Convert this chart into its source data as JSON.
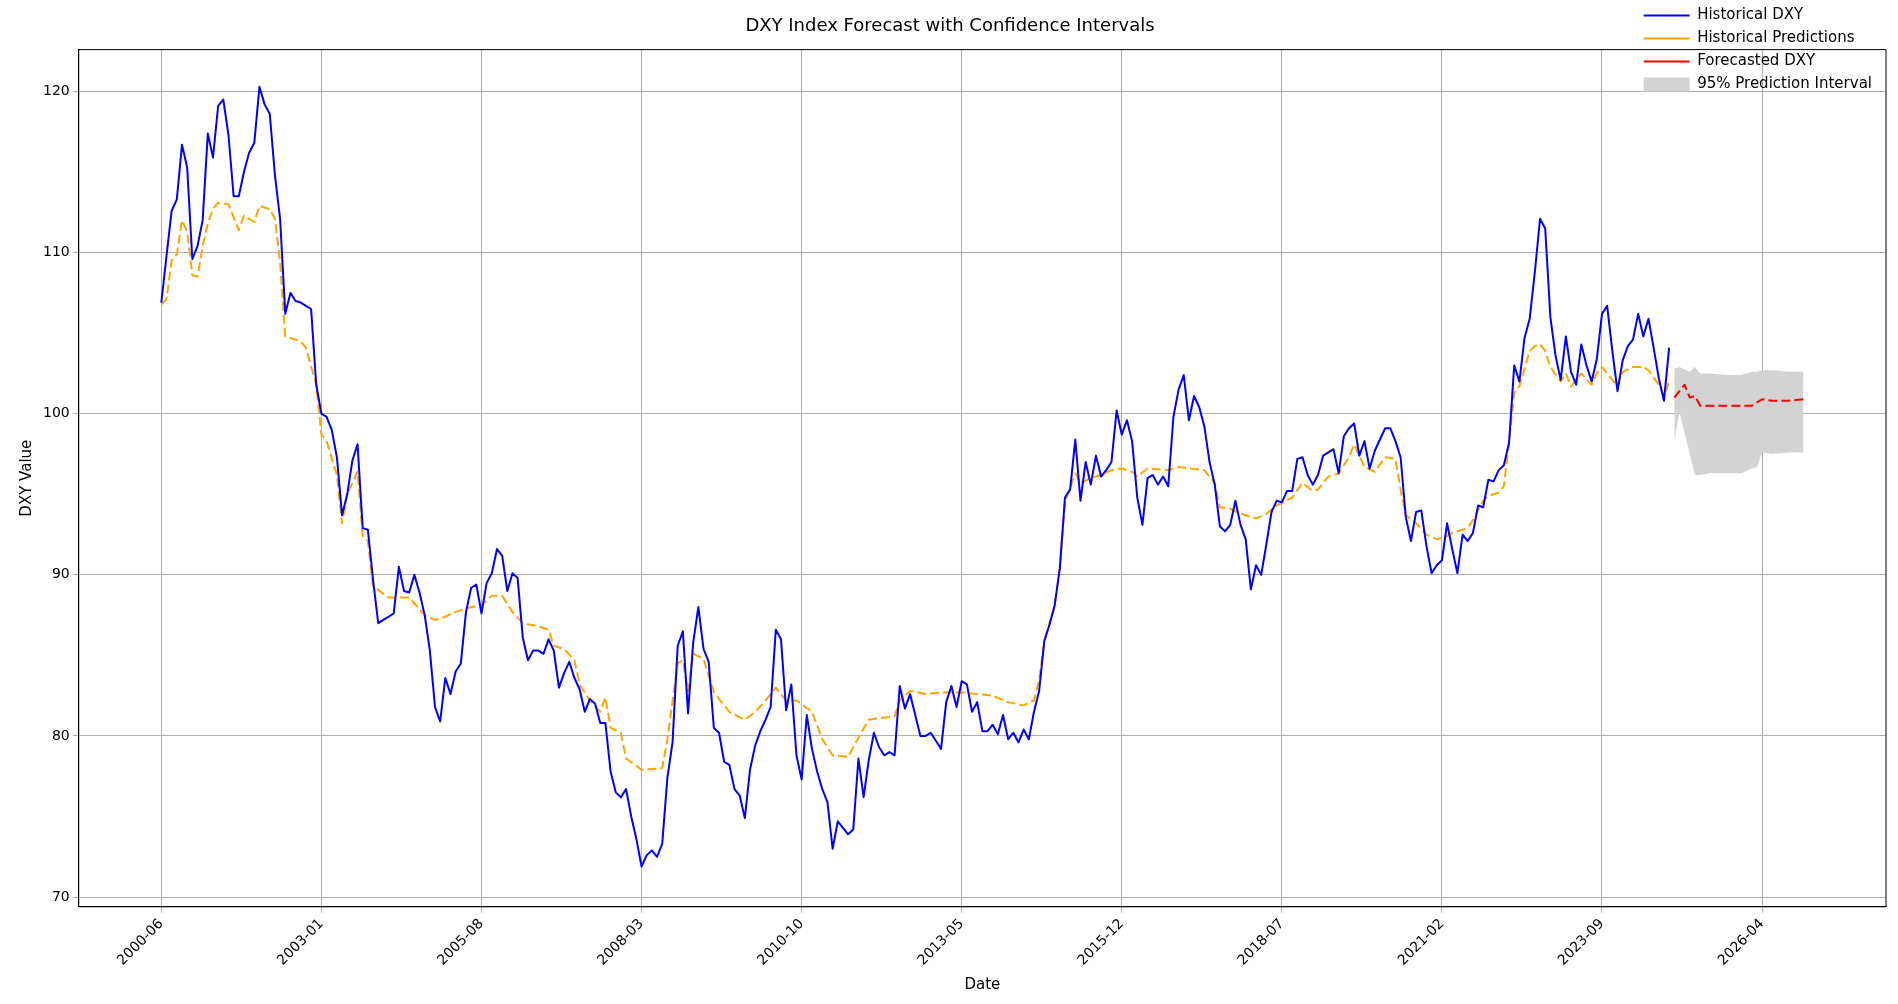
{
  "chart_data": {
    "type": "line",
    "title": "DXY Index Forecast with Confidence Intervals",
    "xlabel": "Date",
    "ylabel": "DXY Value",
    "xlim": [
      "1999-02",
      "2028-04"
    ],
    "xticks": [
      "2000-06",
      "2003-01",
      "2005-08",
      "2008-03",
      "2010-10",
      "2013-05",
      "2015-12",
      "2018-07",
      "2021-02",
      "2023-09",
      "2026-04"
    ],
    "ylim": [
      69.4,
      122.6
    ],
    "yticks": [
      70,
      80,
      90,
      100,
      110,
      120
    ],
    "grid": true,
    "legend": "top right",
    "series": [
      {
        "name": "Historical DXY",
        "type": "line",
        "color": "#0000ff",
        "line_style": "solid",
        "x": [
          "2000-06",
          "2000-07",
          "2000-08",
          "2000-09",
          "2000-10",
          "2000-11",
          "2000-12",
          "2001-01",
          "2001-02",
          "2001-03",
          "2001-04",
          "2001-05",
          "2001-06",
          "2001-07",
          "2001-08",
          "2001-09",
          "2001-10",
          "2001-11",
          "2001-12",
          "2002-01",
          "2002-02",
          "2002-03",
          "2002-04",
          "2002-05",
          "2002-06",
          "2002-07",
          "2002-08",
          "2002-09",
          "2002-10",
          "2002-11",
          "2002-12",
          "2003-01",
          "2003-02",
          "2003-03",
          "2003-04",
          "2003-05",
          "2003-06",
          "2003-07",
          "2003-08",
          "2003-09",
          "2003-10",
          "2003-11",
          "2003-12",
          "2004-01",
          "2004-02",
          "2004-03",
          "2004-04",
          "2004-05",
          "2004-06",
          "2004-07",
          "2004-08",
          "2004-09",
          "2004-10",
          "2004-11",
          "2004-12",
          "2005-01",
          "2005-02",
          "2005-03",
          "2005-04",
          "2005-05",
          "2005-06",
          "2005-07",
          "2005-08",
          "2005-09",
          "2005-10",
          "2005-11",
          "2005-12",
          "2006-01",
          "2006-02",
          "2006-03",
          "2006-04",
          "2006-05",
          "2006-06",
          "2006-07",
          "2006-08",
          "2006-09",
          "2006-10",
          "2006-11",
          "2006-12",
          "2007-01",
          "2007-02",
          "2007-03",
          "2007-04",
          "2007-05",
          "2007-06",
          "2007-07",
          "2007-08",
          "2007-09",
          "2007-10",
          "2007-11",
          "2007-12",
          "2008-01",
          "2008-02",
          "2008-03",
          "2008-04",
          "2008-05",
          "2008-06",
          "2008-07",
          "2008-08",
          "2008-09",
          "2008-10",
          "2008-11",
          "2008-12",
          "2009-01",
          "2009-02",
          "2009-03",
          "2009-04",
          "2009-05",
          "2009-06",
          "2009-07",
          "2009-08",
          "2009-09",
          "2009-10",
          "2009-11",
          "2009-12",
          "2010-01",
          "2010-02",
          "2010-03",
          "2010-04",
          "2010-05",
          "2010-06",
          "2010-07",
          "2010-08",
          "2010-09",
          "2010-10",
          "2010-11",
          "2010-12",
          "2011-01",
          "2011-02",
          "2011-03",
          "2011-04",
          "2011-05",
          "2011-06",
          "2011-07",
          "2011-08",
          "2011-09",
          "2011-10",
          "2011-11",
          "2011-12",
          "2012-01",
          "2012-02",
          "2012-03",
          "2012-04",
          "2012-05",
          "2012-06",
          "2012-07",
          "2012-08",
          "2012-09",
          "2012-10",
          "2012-11",
          "2012-12",
          "2013-01",
          "2013-02",
          "2013-03",
          "2013-04",
          "2013-05",
          "2013-06",
          "2013-07",
          "2013-08",
          "2013-09",
          "2013-10",
          "2013-11",
          "2013-12",
          "2014-01",
          "2014-02",
          "2014-03",
          "2014-04",
          "2014-05",
          "2014-06",
          "2014-07",
          "2014-08",
          "2014-09",
          "2014-10",
          "2014-11",
          "2014-12",
          "2015-01",
          "2015-02",
          "2015-03",
          "2015-04",
          "2015-05",
          "2015-06",
          "2015-07",
          "2015-08",
          "2015-09",
          "2015-10",
          "2015-11",
          "2015-12",
          "2016-01",
          "2016-02",
          "2016-03",
          "2016-04",
          "2016-05",
          "2016-06",
          "2016-07",
          "2016-08",
          "2016-09",
          "2016-10",
          "2016-11",
          "2016-12",
          "2017-01",
          "2017-02",
          "2017-03",
          "2017-04",
          "2017-05",
          "2017-06",
          "2017-07",
          "2017-08",
          "2017-09",
          "2017-10",
          "2017-11",
          "2017-12",
          "2018-01",
          "2018-02",
          "2018-03",
          "2018-04",
          "2018-05",
          "2018-06",
          "2018-07",
          "2018-08",
          "2018-09",
          "2018-10",
          "2018-11",
          "2018-12",
          "2019-01",
          "2019-02",
          "2019-03",
          "2019-04",
          "2019-05",
          "2019-06",
          "2019-07",
          "2019-08",
          "2019-09",
          "2019-10",
          "2019-11",
          "2019-12",
          "2020-01",
          "2020-03",
          "2020-04",
          "2020-05",
          "2020-06",
          "2020-07",
          "2020-08",
          "2020-09",
          "2020-10",
          "2020-11",
          "2020-12",
          "2021-01",
          "2021-02",
          "2021-03",
          "2021-04",
          "2021-05",
          "2021-06",
          "2021-07",
          "2021-08",
          "2021-09",
          "2021-10",
          "2021-11",
          "2021-12",
          "2022-01",
          "2022-02",
          "2022-03",
          "2022-04",
          "2022-05",
          "2022-06",
          "2022-07",
          "2022-08",
          "2022-09",
          "2022-10",
          "2022-11",
          "2022-12",
          "2023-01",
          "2023-02",
          "2023-03",
          "2023-04",
          "2023-05",
          "2023-06",
          "2023-07",
          "2023-08",
          "2023-09",
          "2023-10",
          "2023-11",
          "2023-12",
          "2024-01",
          "2024-02",
          "2024-03",
          "2024-04",
          "2024-05",
          "2024-06",
          "2024-07",
          "2024-08",
          "2024-09",
          "2024-10"
        ],
        "values": [
          106.9,
          109.8,
          112.6,
          113.3,
          116.7,
          115.3,
          109.6,
          110.4,
          112.0,
          117.4,
          115.9,
          119.1,
          119.5,
          117.3,
          113.5,
          113.5,
          115.0,
          116.2,
          116.8,
          120.3,
          119.2,
          118.6,
          114.8,
          112.1,
          106.2,
          107.5,
          107.0,
          106.9,
          106.7,
          106.5,
          101.8,
          100.0,
          99.8,
          99.0,
          97.3,
          93.7,
          95.0,
          97.1,
          98.1,
          92.9,
          92.8,
          89.7,
          87.0,
          87.2,
          87.4,
          87.6,
          90.5,
          89.0,
          88.9,
          90.0,
          88.9,
          87.5,
          85.3,
          81.8,
          80.9,
          83.6,
          82.6,
          84.0,
          84.5,
          87.7,
          89.2,
          89.4,
          87.6,
          89.5,
          90.1,
          91.6,
          91.2,
          89.0,
          90.1,
          89.8,
          86.1,
          84.7,
          85.3,
          85.3,
          85.1,
          86.0,
          85.3,
          83.0,
          83.9,
          84.6,
          83.6,
          82.9,
          81.5,
          82.3,
          82.0,
          80.8,
          80.8,
          77.8,
          76.5,
          76.2,
          76.7,
          75.0,
          73.6,
          71.9,
          72.6,
          72.9,
          72.5,
          73.3,
          77.4,
          79.6,
          85.6,
          86.5,
          81.4,
          85.8,
          88.0,
          85.4,
          84.6,
          80.5,
          80.2,
          78.4,
          78.2,
          76.7,
          76.3,
          74.9,
          77.9,
          79.4,
          80.3,
          81.0,
          81.8,
          86.6,
          86.0,
          81.6,
          83.2,
          78.8,
          77.3,
          81.3,
          79.2,
          77.8,
          76.7,
          75.9,
          73.0,
          74.7,
          74.3,
          73.9,
          74.2,
          78.6,
          76.2,
          78.5,
          80.2,
          79.3,
          78.8,
          79.0,
          78.8,
          83.1,
          81.7,
          82.6,
          81.3,
          80.0,
          80.0,
          80.2,
          79.7,
          79.2,
          82.1,
          83.1,
          81.8,
          83.4,
          83.2,
          81.5,
          82.1,
          80.3,
          80.3,
          80.7,
          80.1,
          81.3,
          79.8,
          80.2,
          79.6,
          80.4,
          79.8,
          81.5,
          82.8,
          85.9,
          86.9,
          88.1,
          90.4,
          94.8,
          95.3,
          98.4,
          94.6,
          97.0,
          95.6,
          97.4,
          96.1,
          96.5,
          97.0,
          100.2,
          98.7,
          99.6,
          98.3,
          94.8,
          93.1,
          96.0,
          96.2,
          95.6,
          96.1,
          95.5,
          99.8,
          101.5,
          102.4,
          99.6,
          101.1,
          100.4,
          99.2,
          97.0,
          95.6,
          93.0,
          92.7,
          93.1,
          94.6,
          93.1,
          92.2,
          89.1,
          90.6,
          90.0,
          91.9,
          93.9,
          94.6,
          94.5,
          95.2,
          95.2,
          97.2,
          97.3,
          96.2,
          95.6,
          96.2,
          97.4,
          97.6,
          97.8,
          96.3,
          98.6,
          99.1,
          99.4,
          97.4,
          98.3,
          96.6,
          97.7,
          99.1,
          99.1,
          98.3,
          97.3,
          93.6,
          92.1,
          93.9,
          94.0,
          91.8,
          90.1,
          90.6,
          90.9,
          93.2,
          91.6,
          90.1,
          92.5,
          92.1,
          92.6,
          94.3,
          94.2,
          95.9,
          95.8,
          96.5,
          96.8,
          98.2,
          103.0,
          102.0,
          104.7,
          105.9,
          108.8,
          112.1,
          111.5,
          106.0,
          103.6,
          102.1,
          104.8,
          102.6,
          101.8,
          104.3,
          103.0,
          102.0,
          103.4,
          106.2,
          106.7,
          103.9,
          101.4,
          103.3,
          104.2,
          104.6,
          106.2,
          104.8,
          105.9,
          104.1,
          102.2,
          100.8,
          104.1
        ]
      },
      {
        "name": "Historical Predictions",
        "type": "line",
        "color": "#ffa500",
        "line_style": "dashed",
        "x": [
          "2000-06",
          "2000-07",
          "2000-08",
          "2000-09",
          "2000-10",
          "2000-11",
          "2000-12",
          "2001-01",
          "2001-02",
          "2001-03",
          "2001-04",
          "2001-05",
          "2001-07",
          "2001-09",
          "2001-10",
          "2001-12",
          "2002-01",
          "2002-03",
          "2002-04",
          "2002-05",
          "2002-06",
          "2002-07",
          "2002-09",
          "2002-10",
          "2002-12",
          "2003-01",
          "2003-02",
          "2003-04",
          "2003-05",
          "2003-06",
          "2003-08",
          "2003-09",
          "2003-10",
          "2003-11",
          "2004-02",
          "2004-06",
          "2004-09",
          "2004-11",
          "2005-01",
          "2005-03",
          "2005-06",
          "2005-08",
          "2005-10",
          "2005-12",
          "2006-02",
          "2006-04",
          "2006-07",
          "2006-09",
          "2006-10",
          "2006-12",
          "2007-02",
          "2007-03",
          "2007-05",
          "2007-07",
          "2007-08",
          "2007-09",
          "2007-11",
          "2007-12",
          "2008-03",
          "2008-07",
          "2008-08",
          "2008-10",
          "2008-11",
          "2008-12",
          "2009-01",
          "2009-03",
          "2009-05",
          "2009-08",
          "2009-11",
          "2010-01",
          "2010-03",
          "2010-05",
          "2010-07",
          "2010-09",
          "2010-12",
          "2011-02",
          "2011-04",
          "2011-07",
          "2011-09",
          "2011-11",
          "2012-01",
          "2012-04",
          "2012-05",
          "2012-07",
          "2012-10",
          "2013-01",
          "2013-05",
          "2013-08",
          "2013-11",
          "2014-02",
          "2014-05",
          "2014-07",
          "2014-08",
          "2014-09",
          "2014-11",
          "2014-12",
          "2015-01",
          "2015-02",
          "2015-03",
          "2015-04",
          "2015-06",
          "2015-08",
          "2015-10",
          "2015-12",
          "2016-02",
          "2016-03",
          "2016-05",
          "2016-09",
          "2016-11",
          "2017-01",
          "2017-04",
          "2017-06",
          "2017-07",
          "2017-09",
          "2017-11",
          "2018-02",
          "2018-04",
          "2018-06",
          "2018-09",
          "2018-11",
          "2019-01",
          "2019-02",
          "2019-04",
          "2019-06",
          "2019-08",
          "2019-09",
          "2019-11",
          "2020-01",
          "2020-03",
          "2020-05",
          "2020-06",
          "2020-07",
          "2020-09",
          "2020-11",
          "2021-01",
          "2021-03",
          "2021-04",
          "2021-07",
          "2021-08",
          "2021-10",
          "2021-11",
          "2022-01",
          "2022-02",
          "2022-03",
          "2022-04",
          "2022-05",
          "2022-07",
          "2022-08",
          "2022-09",
          "2022-10",
          "2022-11",
          "2023-01",
          "2023-02",
          "2023-03",
          "2023-05",
          "2023-07",
          "2023-08",
          "2023-09",
          "2023-12",
          "2024-01",
          "2024-03",
          "2024-05",
          "2024-06",
          "2024-08",
          "2024-09",
          "2024-10"
        ],
        "values": [
          106.8,
          107.1,
          109.5,
          109.9,
          112.0,
          111.3,
          108.6,
          108.5,
          110.4,
          111.8,
          112.7,
          113.1,
          113.0,
          111.4,
          112.3,
          111.9,
          112.9,
          112.7,
          112.1,
          109.4,
          104.8,
          104.7,
          104.5,
          104.1,
          101.8,
          98.7,
          98.3,
          96.2,
          93.2,
          95.0,
          96.4,
          92.4,
          92.1,
          89.3,
          88.6,
          88.6,
          87.5,
          87.2,
          87.4,
          87.7,
          88.0,
          88.1,
          88.7,
          88.7,
          87.7,
          87.0,
          86.8,
          86.6,
          85.6,
          85.4,
          84.7,
          83.2,
          82.2,
          81.5,
          82.4,
          80.5,
          80.2,
          78.6,
          77.9,
          78.0,
          79.8,
          84.5,
          84.7,
          82.8,
          85.1,
          84.8,
          82.7,
          81.5,
          81.0,
          81.5,
          82.2,
          83.0,
          82.2,
          82.2,
          81.5,
          79.8,
          78.8,
          78.7,
          79.9,
          81.0,
          81.1,
          81.2,
          82.2,
          82.8,
          82.6,
          82.7,
          82.7,
          82.6,
          82.5,
          82.1,
          81.9,
          82.2,
          83.5,
          85.9,
          88.1,
          90.4,
          94.5,
          95.4,
          96.3,
          95.7,
          96.0,
          96.2,
          96.5,
          96.6,
          96.4,
          96.1,
          96.6,
          96.5,
          96.7,
          96.6,
          96.5,
          95.7,
          94.2,
          94.1,
          93.8,
          93.5,
          93.8,
          94.3,
          94.8,
          95.7,
          95.2,
          95.3,
          96.1,
          96.3,
          97.3,
          98.1,
          96.7,
          96.4,
          97.3,
          97.2,
          95.3,
          93.7,
          93.2,
          92.5,
          92.2,
          92.4,
          92.6,
          92.9,
          93.4,
          94.6,
          94.9,
          95.1,
          95.5,
          98.2,
          101.3,
          101.7,
          103.9,
          104.2,
          104.3,
          103.9,
          102.9,
          102.0,
          102.5,
          101.7,
          102.5,
          101.8,
          102.5,
          102.9,
          101.7,
          102.6,
          102.9,
          102.9,
          102.7,
          101.8,
          101.1,
          102.0
        ]
      },
      {
        "name": "Forecasted DXY",
        "type": "line",
        "color": "#ff0000",
        "line_style": "dashed",
        "x": [
          "2024-11",
          "2025-01",
          "2025-02",
          "2025-03",
          "2025-04",
          "2025-06",
          "2025-09",
          "2025-12",
          "2026-02",
          "2026-04",
          "2026-06",
          "2026-09",
          "2026-12"
        ],
        "values": [
          101.0,
          101.8,
          101.0,
          101.1,
          100.5,
          100.5,
          100.5,
          100.5,
          100.5,
          100.9,
          100.8,
          100.8,
          100.9
        ]
      },
      {
        "name": "95% Prediction Interval",
        "type": "area",
        "color": "#d3d3d3",
        "x": [
          "2024-11",
          "2024-12",
          "2025-02",
          "2025-03",
          "2025-04",
          "2025-06",
          "2025-09",
          "2025-12",
          "2026-02",
          "2026-03",
          "2026-04",
          "2026-06",
          "2026-09",
          "2026-12"
        ],
        "values": [
          null,
          null,
          null,
          null,
          null,
          null,
          null,
          null,
          null,
          null,
          null,
          null,
          null,
          null
        ],
        "upper": [
          102.8,
          102.9,
          102.6,
          102.9,
          102.5,
          102.5,
          102.4,
          102.4,
          102.6,
          102.6,
          102.7,
          102.7,
          102.6,
          102.6
        ],
        "lower": [
          98.3,
          100.1,
          97.5,
          96.2,
          96.2,
          96.3,
          96.3,
          96.3,
          96.6,
          96.7,
          97.6,
          97.5,
          97.6,
          97.6
        ]
      }
    ]
  }
}
